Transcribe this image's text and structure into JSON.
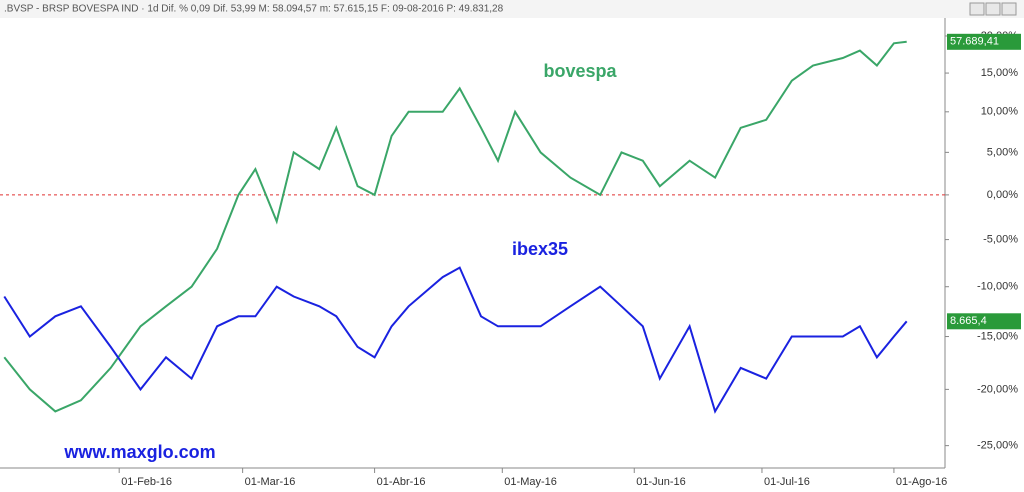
{
  "header": {
    "title": ".BVSP - BRSP BOVESPA IND  ·  1d   Dif. %  0,09   Dif.  53,99   M:  58.094,57   m:  57.615,15   F:  09-08-2016   P:  49.831,28"
  },
  "chart_data": {
    "type": "line",
    "annotation": "www.maxglo.com",
    "log_scale": true,
    "reference_line": 0,
    "reference_color": "#e03030",
    "x": [
      "2016-01-05",
      "2016-01-11",
      "2016-01-17",
      "2016-01-23",
      "2016-01-30",
      "2016-02-06",
      "2016-02-12",
      "2016-02-18",
      "2016-02-24",
      "2016-02-29",
      "2016-03-04",
      "2016-03-09",
      "2016-03-13",
      "2016-03-19",
      "2016-03-23",
      "2016-03-28",
      "2016-04-01",
      "2016-04-05",
      "2016-04-09",
      "2016-04-17",
      "2016-04-21",
      "2016-04-26",
      "2016-04-30",
      "2016-05-04",
      "2016-05-10",
      "2016-05-17",
      "2016-05-24",
      "2016-05-29",
      "2016-06-03",
      "2016-06-07",
      "2016-06-14",
      "2016-06-20",
      "2016-06-26",
      "2016-07-02",
      "2016-07-08",
      "2016-07-13",
      "2016-07-20",
      "2016-07-24",
      "2016-07-28",
      "2016-08-01",
      "2016-08-04"
    ],
    "xlim": [
      "2016-01-04",
      "2016-08-13"
    ],
    "xticks": [
      {
        "value": "2016-02-01",
        "label": "01-Feb-16"
      },
      {
        "value": "2016-03-01",
        "label": "01-Mar-16"
      },
      {
        "value": "2016-04-01",
        "label": "01-Abr-16"
      },
      {
        "value": "2016-05-01",
        "label": "01-May-16"
      },
      {
        "value": "2016-06-01",
        "label": "01-Jun-16"
      },
      {
        "value": "2016-07-01",
        "label": "01-Jul-16"
      },
      {
        "value": "2016-08-01",
        "label": "01-Ago-16"
      }
    ],
    "ylim": [
      -26.9,
      22.5
    ],
    "yticks": [
      {
        "value": 20,
        "label": "20,00%"
      },
      {
        "value": 15,
        "label": "15,00%"
      },
      {
        "value": 10,
        "label": "10,00%"
      },
      {
        "value": 5,
        "label": "5,00%"
      },
      {
        "value": 0,
        "label": "0,00%"
      },
      {
        "value": -5,
        "label": "-5,00%"
      },
      {
        "value": -10,
        "label": "-10,00%"
      },
      {
        "value": -15,
        "label": "-15,00%"
      },
      {
        "value": -20,
        "label": "-20,00%"
      },
      {
        "value": -25,
        "label": "-25,00%"
      }
    ],
    "series": [
      {
        "name": "bovespa",
        "color": "#3aa668",
        "price_label": "57.689,41",
        "values": [
          -17,
          -20,
          -22,
          -21,
          -18,
          -14,
          -12,
          -10,
          -6,
          0,
          3,
          -3,
          5,
          3,
          8,
          1,
          0,
          7,
          10,
          10,
          13,
          8,
          4,
          10,
          5,
          2,
          0,
          5,
          4,
          1,
          4,
          2,
          8,
          9,
          14,
          16,
          17,
          18,
          16,
          19,
          19.2
        ]
      },
      {
        "name": "ibex35",
        "color": "#1a22e0",
        "price_label": "8.665,4",
        "values": [
          -11,
          -15,
          -13,
          -12,
          -16,
          -20,
          -17,
          -19,
          -14,
          -13,
          -13,
          -10,
          -11,
          -12,
          -13,
          -16,
          -17,
          -14,
          -12,
          -9,
          -8,
          -13,
          -14,
          -14,
          -14,
          -12,
          -10,
          -12,
          -14,
          -19,
          -14,
          -22,
          -18,
          -19,
          -15,
          -15,
          -15,
          -14,
          -17,
          -15,
          -13.5
        ]
      }
    ]
  }
}
